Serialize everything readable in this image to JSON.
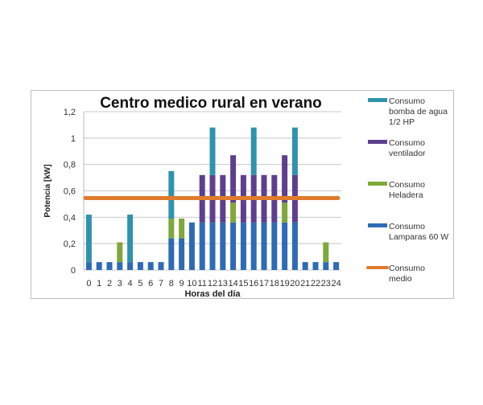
{
  "chart_data": {
    "type": "bar",
    "stacked": true,
    "title": "Centro medico rural en verano",
    "xlabel": "Horas del día",
    "ylabel": "Potencia [kW]",
    "ylim": [
      0,
      1.2
    ],
    "yticks": [
      "0",
      "0,2",
      "0,4",
      "0,6",
      "0,8",
      "1",
      "1,2"
    ],
    "grid": true,
    "legend_position": "right",
    "categories": [
      "0",
      "1",
      "2",
      "3",
      "4",
      "5",
      "6",
      "7",
      "8",
      "9",
      "10",
      "11",
      "12",
      "13",
      "14",
      "15",
      "16",
      "17",
      "18",
      "19",
      "20",
      "21",
      "22",
      "23",
      "24"
    ],
    "series": [
      {
        "name": "Consumo Lamparas 60 W",
        "color": "#2e6bb5",
        "values": [
          0.06,
          0.06,
          0.06,
          0.06,
          0.06,
          0.06,
          0.06,
          0.06,
          0.24,
          0.24,
          0.36,
          0.36,
          0.36,
          0.36,
          0.36,
          0.36,
          0.36,
          0.36,
          0.36,
          0.36,
          0.36,
          0.06,
          0.06,
          0.06,
          0.06
        ]
      },
      {
        "name": "Consumo Heladera",
        "color": "#7fa83a",
        "values": [
          0,
          0,
          0,
          0.15,
          0,
          0,
          0,
          0,
          0.15,
          0.15,
          0,
          0,
          0,
          0,
          0.15,
          0,
          0,
          0,
          0,
          0.15,
          0,
          0,
          0,
          0.15,
          0
        ]
      },
      {
        "name": "Consumo ventilador",
        "color": "#5e3f8f",
        "values": [
          0,
          0,
          0,
          0,
          0,
          0,
          0,
          0,
          0,
          0,
          0,
          0.36,
          0.36,
          0.36,
          0.36,
          0.36,
          0.36,
          0.36,
          0.36,
          0.36,
          0.36,
          0,
          0,
          0,
          0
        ]
      },
      {
        "name": "Consumo bomba de agua 1/2 HP",
        "color": "#2f93ad",
        "values": [
          0.36,
          0,
          0,
          0,
          0.36,
          0,
          0,
          0,
          0.36,
          0,
          0,
          0,
          0.36,
          0,
          0,
          0,
          0.36,
          0,
          0,
          0,
          0.36,
          0,
          0,
          0,
          0
        ]
      }
    ],
    "line": {
      "name": "Consumo medio",
      "color": "#e07b2c",
      "value": 0.545
    },
    "legend": [
      {
        "lines": [
          "Consumo",
          "bomba de agua",
          "1/2 HP"
        ],
        "color": "#2f93ad",
        "kind": "bar"
      },
      {
        "lines": [
          "Consumo",
          "ventilador"
        ],
        "color": "#5e3f8f",
        "kind": "bar"
      },
      {
        "lines": [
          "Consumo",
          "Heladera"
        ],
        "color": "#7fa83a",
        "kind": "bar"
      },
      {
        "lines": [
          "Consumo",
          "Lamparas 60 W"
        ],
        "color": "#2e6bb5",
        "kind": "bar"
      },
      {
        "lines": [
          "Consumo",
          "medio"
        ],
        "color": "#e07b2c",
        "kind": "line"
      }
    ]
  }
}
